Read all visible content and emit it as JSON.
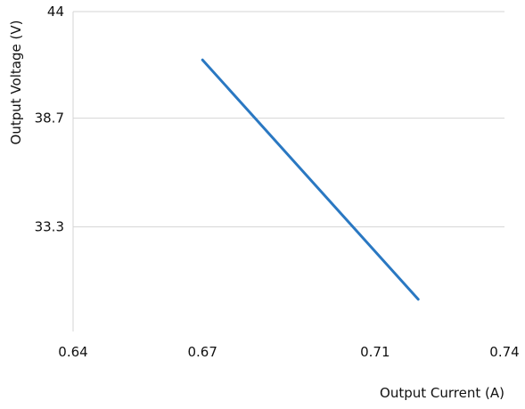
{
  "chart_data": {
    "type": "line",
    "title": "",
    "xlabel": "Output Current (A)",
    "ylabel": "Output Voltage (V)",
    "x_ticks": [
      0.64,
      0.67,
      0.71,
      0.74
    ],
    "x_tick_labels": [
      "0.64",
      "0.67",
      "0.71",
      "0.74"
    ],
    "y_ticks": [
      33.3,
      38.7,
      44
    ],
    "y_tick_labels": [
      "33.3",
      "38.7",
      "44"
    ],
    "xlim": [
      0.64,
      0.74
    ],
    "ylim": [
      28.1,
      44
    ],
    "grid": "horizontal",
    "series": [
      {
        "x": [
          0.67,
          0.72
        ],
        "y": [
          41.6,
          29.7
        ],
        "color": "#2a78c2"
      }
    ]
  }
}
